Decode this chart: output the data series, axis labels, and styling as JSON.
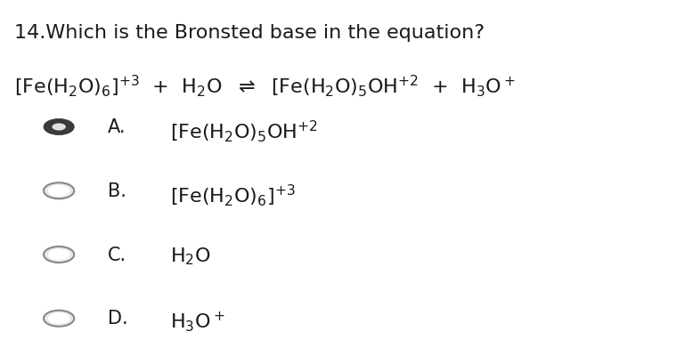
{
  "background_color": "#ffffff",
  "title": "14.Which is the Bronsted base in the equation?",
  "eq_left": "[Fe(H$_2$O)$_6$]$^{+3}$ + H$_2$O",
  "eq_arrow": "⇌",
  "eq_right": "[Fe(H$_2$O)$_5$OH$^{+2}$ + H$_3$O$^+$",
  "option_labels": [
    "A.",
    "B.",
    "C.",
    "D."
  ],
  "option_texts": [
    "[Fe(H$_2$O)$_5$OH$^{+2}$",
    "[Fe(H$_2$O)$_6$]$^{+3}$",
    "H$_2$O",
    "H$_3$O$^+$"
  ],
  "selected_option": 0,
  "fig_width": 7.78,
  "fig_height": 4.1,
  "dpi": 100,
  "text_color": "#1a1a1a",
  "title_fontsize": 16,
  "eq_fontsize": 16,
  "option_fontsize": 16,
  "label_fontsize": 15
}
